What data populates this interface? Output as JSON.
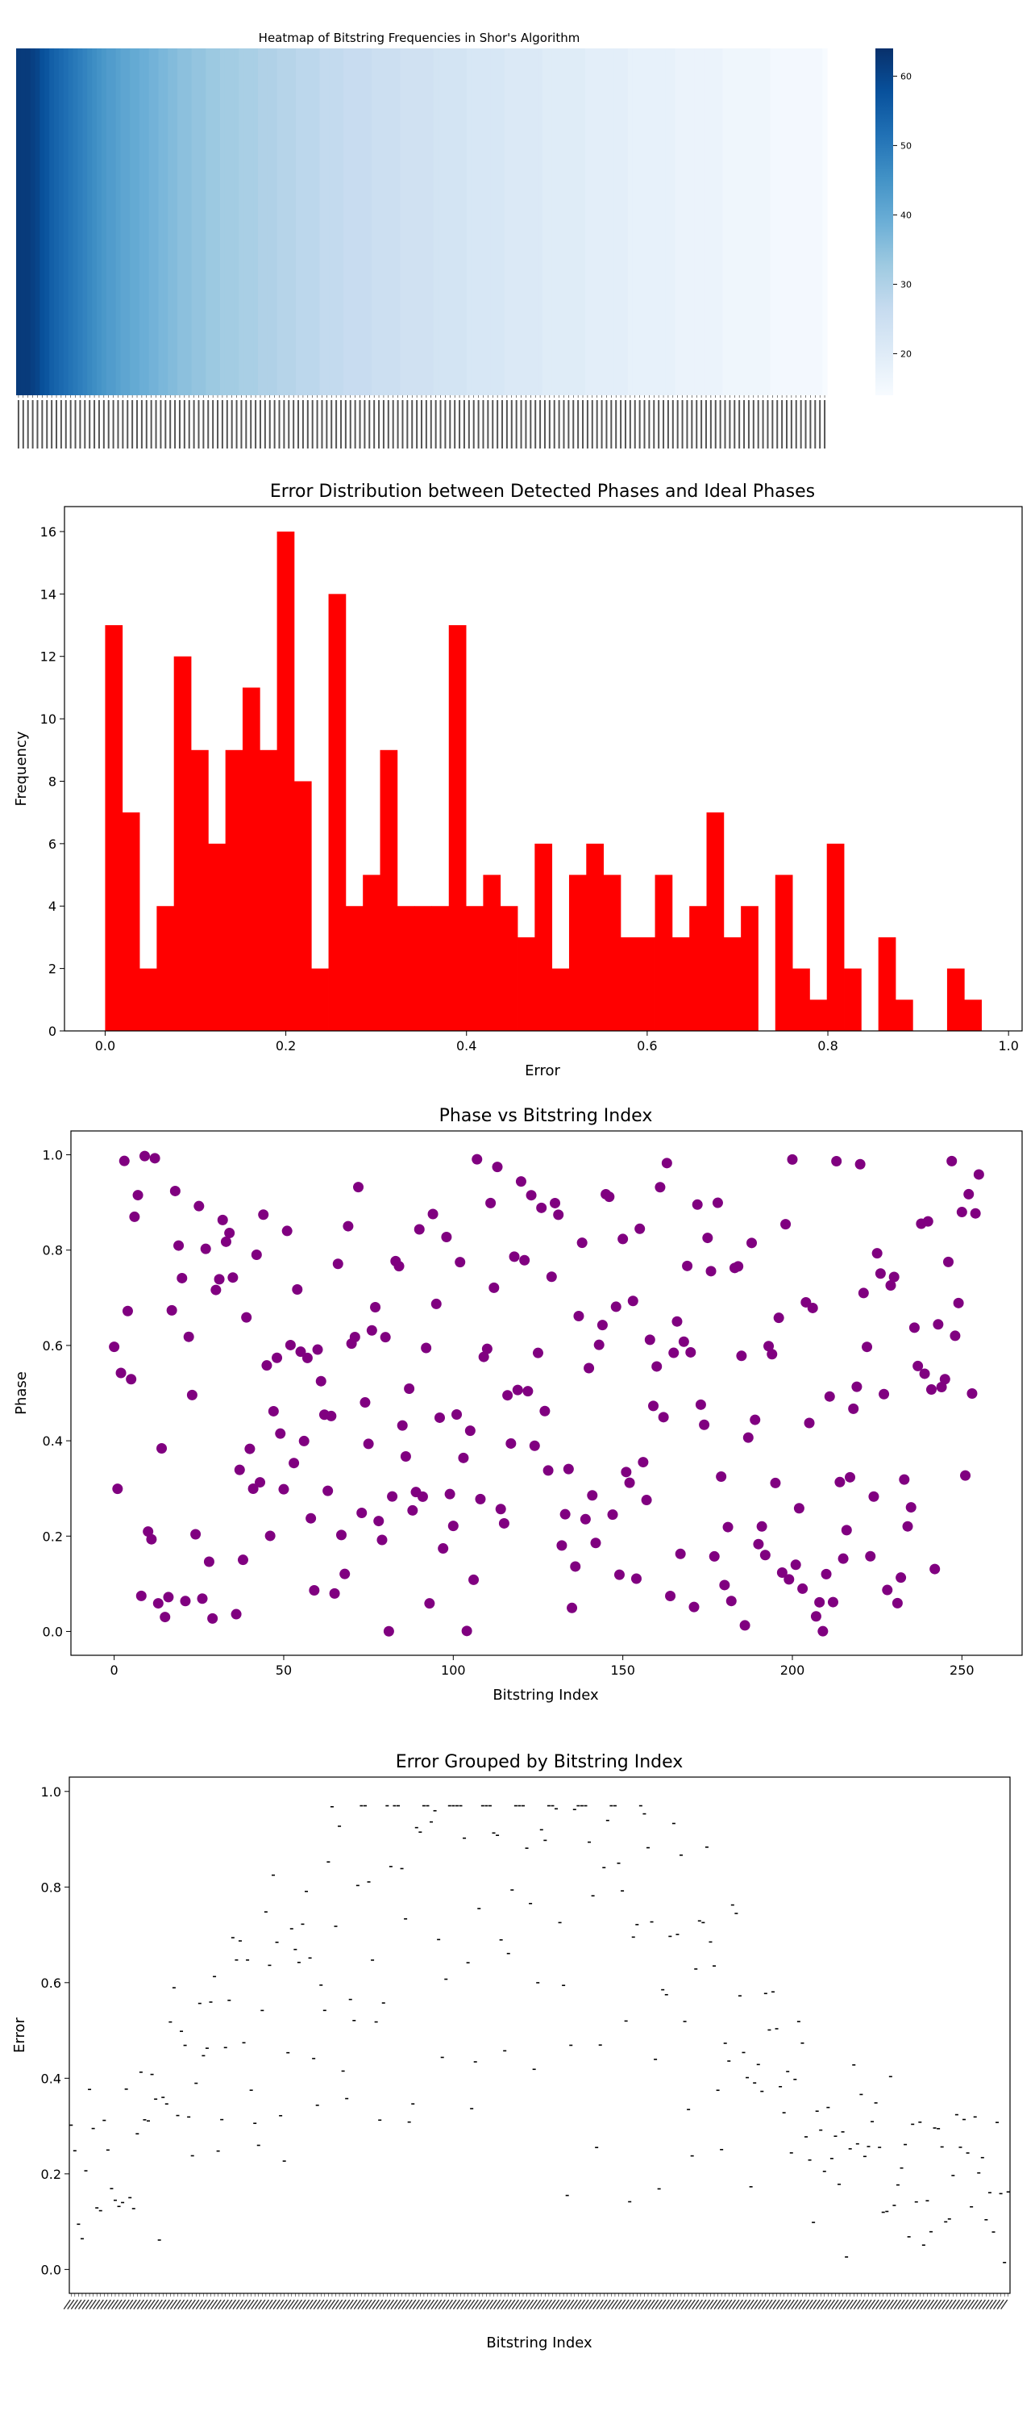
{
  "chart_data": [
    {
      "type": "heatmap",
      "title": "Heatmap of Bitstring Frequencies in Shor's Algorithm",
      "colormap": "Blues",
      "colorbar": {
        "range": [
          14,
          64
        ],
        "ticks": [
          20,
          30,
          40,
          50,
          60
        ]
      },
      "values": [
        62,
        62,
        62,
        61,
        60,
        58,
        57,
        55,
        54,
        53,
        52,
        51,
        50,
        49,
        48,
        47,
        46,
        45,
        44,
        43,
        43,
        42,
        41,
        41,
        40,
        40,
        39,
        39,
        38,
        38,
        37,
        37,
        36,
        36,
        35,
        35,
        35,
        34,
        34,
        34,
        33,
        33,
        33,
        32,
        32,
        32,
        32,
        31,
        31,
        31,
        31,
        30,
        30,
        30,
        30,
        29,
        29,
        29,
        29,
        28,
        28,
        28,
        28,
        28,
        27,
        27,
        27,
        27,
        27,
        26,
        26,
        26,
        26,
        26,
        26,
        25,
        25,
        25,
        25,
        25,
        25,
        24,
        24,
        24,
        24,
        24,
        24,
        24,
        23,
        23,
        23,
        23,
        23,
        23,
        23,
        22,
        22,
        22,
        22,
        22,
        22,
        22,
        22,
        21,
        21,
        21,
        21,
        21,
        21,
        21,
        21,
        20,
        20,
        20,
        20,
        20,
        20,
        20,
        20,
        20,
        19,
        19,
        19,
        19,
        19,
        19,
        19,
        19,
        19,
        18,
        18,
        18,
        18,
        18,
        18,
        18,
        18,
        18,
        18,
        17,
        17,
        17,
        17,
        17,
        17,
        17,
        17,
        17,
        17,
        16,
        16,
        16,
        16,
        16,
        16,
        16,
        16,
        16,
        16,
        15,
        15,
        15,
        15,
        15,
        15,
        15,
        15,
        15,
        15,
        15,
        14
      ]
    },
    {
      "type": "bar",
      "title": "Error Distribution between Detected Phases and Ideal Phases",
      "xlabel": "Error",
      "ylabel": "Frequency",
      "xlim": [
        -0.045,
        1.015
      ],
      "ylim": [
        0,
        16.8
      ],
      "xticks": [
        "0.0",
        "0.2",
        "0.4",
        "0.6",
        "0.8",
        "1.0"
      ],
      "yticks": [
        "0",
        "2",
        "4",
        "6",
        "8",
        "10",
        "12",
        "14",
        "16"
      ],
      "color": "#ff0000",
      "bin_range": [
        0.0,
        0.97
      ],
      "values": [
        13,
        7,
        2,
        4,
        12,
        9,
        6,
        9,
        11,
        9,
        16,
        8,
        2,
        14,
        4,
        5,
        9,
        4,
        4,
        4,
        13,
        4,
        5,
        4,
        3,
        6,
        2,
        5,
        6,
        5,
        3,
        3,
        5,
        3,
        4,
        7,
        3,
        4,
        0,
        5,
        2,
        1,
        6,
        2,
        0,
        3,
        1,
        0,
        0,
        2,
        1
      ]
    },
    {
      "type": "scatter",
      "title": "Phase vs Bitstring Index",
      "xlabel": "Bitstring Index",
      "ylabel": "Phase",
      "xlim": [
        -12.75,
        267.75
      ],
      "ylim": [
        -0.05,
        1.05
      ],
      "xticks": [
        "0",
        "50",
        "100",
        "150",
        "200",
        "250"
      ],
      "yticks": [
        "0.0",
        "0.2",
        "0.4",
        "0.6",
        "0.8",
        "1.0"
      ],
      "color": "#800080",
      "point_count": 256
    },
    {
      "type": "box",
      "title": "Error Grouped by Bitstring Index",
      "xlabel": "Bitstring Index",
      "ylabel": "Error",
      "ylim": [
        -0.05,
        1.03
      ],
      "yticks": [
        "0.0",
        "0.2",
        "0.4",
        "0.6",
        "0.8",
        "1.0"
      ],
      "category_count": 256
    }
  ]
}
